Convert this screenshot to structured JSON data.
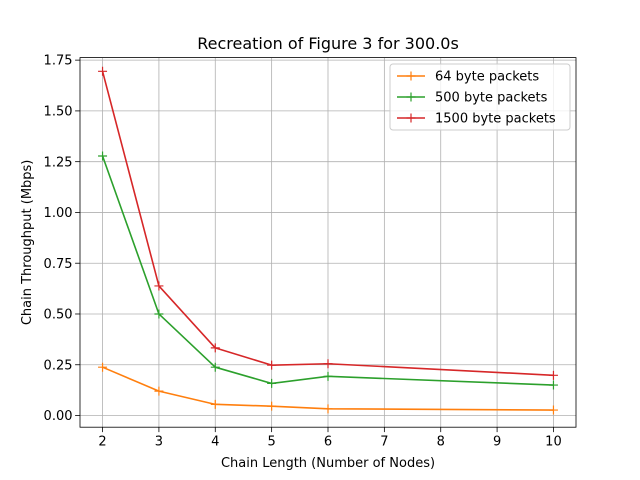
{
  "chart_data": {
    "type": "line",
    "title": "Recreation of Figure 3 for 300.0s",
    "xlabel": "Chain Length (Number of Nodes)",
    "ylabel": "Chain Throughput (Mbps)",
    "xlim": [
      1.6,
      10.4
    ],
    "ylim": [
      -0.0575,
      1.7625
    ],
    "xticks": [
      2,
      3,
      4,
      5,
      6,
      7,
      8,
      9,
      10
    ],
    "yticks": [
      0.0,
      0.25,
      0.5,
      0.75,
      1.0,
      1.25,
      1.5,
      1.75
    ],
    "xtick_labels": [
      "2",
      "3",
      "4",
      "5",
      "6",
      "7",
      "8",
      "9",
      "10"
    ],
    "ytick_labels": [
      "0.00",
      "0.25",
      "0.50",
      "0.75",
      "1.00",
      "1.25",
      "1.50",
      "1.75"
    ],
    "grid": true,
    "legend_position": "top-right",
    "marker": "+",
    "series": [
      {
        "name": "64 byte packets",
        "color": "#ff7f0e",
        "x": [
          2,
          3,
          4,
          5,
          6,
          10
        ],
        "y": [
          0.238,
          0.12,
          0.055,
          0.046,
          0.033,
          0.027
        ]
      },
      {
        "name": "500 byte packets",
        "color": "#2ca02c",
        "x": [
          2,
          3,
          4,
          5,
          6,
          10
        ],
        "y": [
          1.278,
          0.5,
          0.238,
          0.158,
          0.193,
          0.15
        ]
      },
      {
        "name": "1500 byte packets",
        "color": "#d62728",
        "x": [
          2,
          3,
          4,
          5,
          6,
          10
        ],
        "y": [
          1.695,
          0.638,
          0.333,
          0.248,
          0.255,
          0.198
        ]
      }
    ]
  }
}
